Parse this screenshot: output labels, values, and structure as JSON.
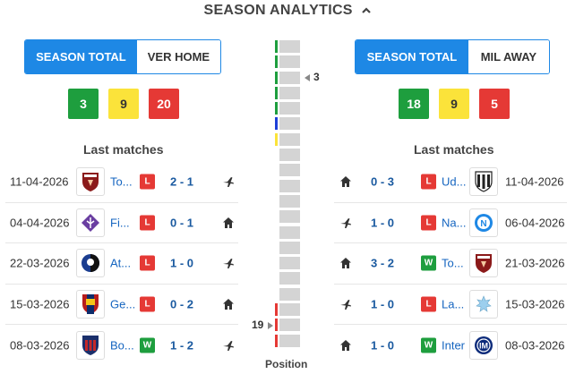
{
  "header": {
    "title": "SEASON ANALYTICS"
  },
  "left": {
    "tabs": [
      "SEASON TOTAL",
      "VER HOME"
    ],
    "stats": {
      "wins": "3",
      "draws": "9",
      "losses": "20"
    },
    "last_matches_title": "Last matches",
    "matches": [
      {
        "date": "11-04-2026",
        "team": "To...",
        "result": "L",
        "score": "2 - 1",
        "venue": "away"
      },
      {
        "date": "04-04-2026",
        "team": "Fi...",
        "result": "L",
        "score": "0 - 1",
        "venue": "home"
      },
      {
        "date": "22-03-2026",
        "team": "At...",
        "result": "L",
        "score": "1 - 0",
        "venue": "away"
      },
      {
        "date": "15-03-2026",
        "team": "Ge...",
        "result": "L",
        "score": "0 - 2",
        "venue": "home"
      },
      {
        "date": "08-03-2026",
        "team": "Bo...",
        "result": "W",
        "score": "1 - 2",
        "venue": "away"
      }
    ]
  },
  "right": {
    "tabs": [
      "SEASON TOTAL",
      "MIL AWAY"
    ],
    "stats": {
      "wins": "18",
      "draws": "9",
      "losses": "5"
    },
    "last_matches_title": "Last matches",
    "matches": [
      {
        "date": "11-04-2026",
        "team": "Ud...",
        "result": "L",
        "score": "0 - 3",
        "venue": "home"
      },
      {
        "date": "06-04-2026",
        "team": "Na...",
        "result": "L",
        "score": "1 - 0",
        "venue": "away"
      },
      {
        "date": "21-03-2026",
        "team": "To...",
        "result": "W",
        "score": "3 - 2",
        "venue": "home"
      },
      {
        "date": "15-03-2026",
        "team": "La...",
        "result": "L",
        "score": "1 - 0",
        "venue": "away"
      },
      {
        "date": "08-03-2026",
        "team": "Inter",
        "result": "W",
        "score": "1 - 0",
        "venue": "home"
      }
    ]
  },
  "position": {
    "title": "Position",
    "total_positions": 20,
    "mil_position": "3",
    "ver_position": "19",
    "zone_marks": [
      {
        "pos": 1,
        "color": "#1e9e3e"
      },
      {
        "pos": 2,
        "color": "#1e9e3e"
      },
      {
        "pos": 3,
        "color": "#1e9e3e"
      },
      {
        "pos": 4,
        "color": "#1e9e3e"
      },
      {
        "pos": 5,
        "color": "#1e9e3e"
      },
      {
        "pos": 6,
        "color": "#1e3fd8"
      },
      {
        "pos": 7,
        "color": "#fbe33a"
      },
      {
        "pos": 18,
        "color": "#e53935"
      },
      {
        "pos": 19,
        "color": "#e53935"
      },
      {
        "pos": 20,
        "color": "#e53935"
      }
    ]
  },
  "colors": {
    "accent": "#1e88e5",
    "win": "#1e9e3e",
    "draw": "#fbe33a",
    "loss": "#e53935"
  }
}
